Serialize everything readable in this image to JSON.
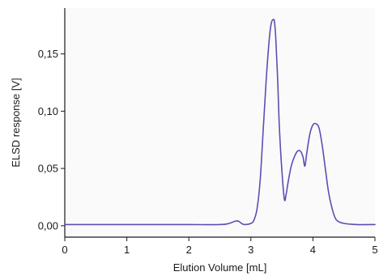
{
  "chart_data": {
    "type": "line",
    "title": "",
    "xlabel": "Elution Volume [mL]",
    "ylabel": "ELSD response [V]",
    "xlim": [
      0,
      5
    ],
    "ylim": [
      -0.01,
      0.19
    ],
    "x_ticks": [
      0,
      1,
      2,
      3,
      4,
      5
    ],
    "x_tick_labels": [
      "0",
      "1",
      "2",
      "3",
      "4",
      "5"
    ],
    "y_ticks": [
      0.0,
      0.05,
      0.1,
      0.15
    ],
    "y_tick_labels": [
      "0,00",
      "0,05",
      "0,10",
      "0,15"
    ],
    "grid": false,
    "line_color": "#5b4fb3",
    "series": [
      {
        "x": [
          0.0,
          0.5,
          1.0,
          1.5,
          2.0,
          2.5,
          2.65,
          2.7,
          2.75,
          2.8,
          2.85,
          2.9,
          3.0,
          3.05,
          3.1,
          3.15,
          3.2,
          3.25,
          3.3,
          3.33,
          3.36,
          3.38,
          3.4,
          3.43,
          3.46,
          3.5,
          3.54,
          3.57,
          3.6,
          3.65,
          3.7,
          3.75,
          3.8,
          3.84,
          3.87,
          3.9,
          3.95,
          4.0,
          4.05,
          4.1,
          4.15,
          4.2,
          4.25,
          4.3,
          4.35,
          4.4,
          4.5,
          4.7,
          5.0
        ],
        "y": [
          0.001,
          0.001,
          0.001,
          0.001,
          0.001,
          0.001,
          0.002,
          0.003,
          0.004,
          0.004,
          0.002,
          0.001,
          0.002,
          0.005,
          0.015,
          0.04,
          0.085,
          0.13,
          0.165,
          0.177,
          0.18,
          0.178,
          0.165,
          0.13,
          0.085,
          0.048,
          0.023,
          0.028,
          0.038,
          0.052,
          0.06,
          0.065,
          0.065,
          0.06,
          0.052,
          0.063,
          0.08,
          0.088,
          0.089,
          0.085,
          0.07,
          0.05,
          0.03,
          0.017,
          0.008,
          0.004,
          0.002,
          0.001,
          0.001
        ]
      }
    ]
  }
}
